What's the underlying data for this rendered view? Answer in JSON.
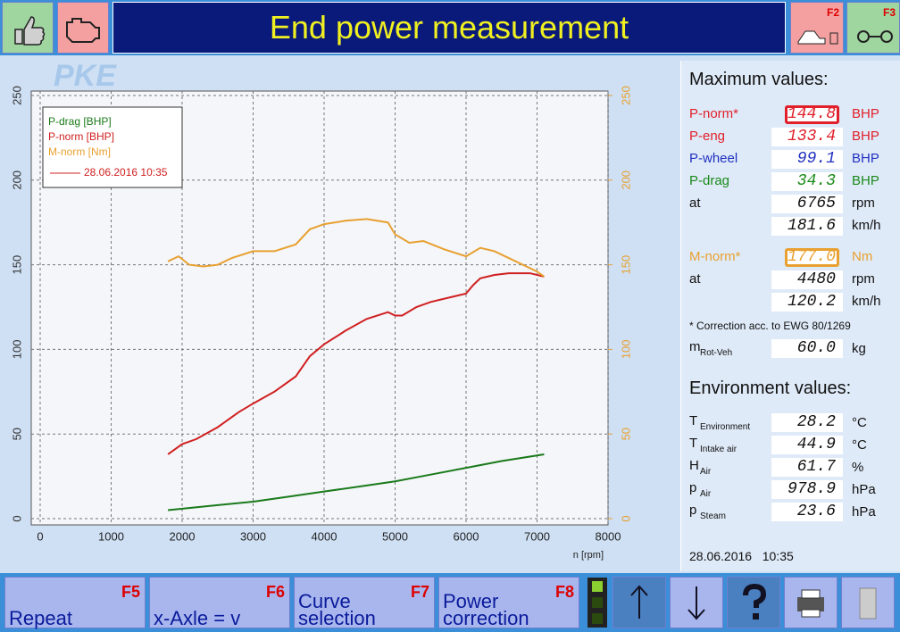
{
  "header": {
    "title": "End power measurement",
    "logo": "PKE",
    "keys": [
      "F2",
      "F3"
    ]
  },
  "chart_data": {
    "type": "line",
    "x_label": "n [rpm]",
    "xlim": [
      0,
      8000
    ],
    "xticks": [
      0,
      1000,
      2000,
      3000,
      4000,
      5000,
      6000,
      7000,
      8000
    ],
    "ylim": [
      0,
      250
    ],
    "yticks": [
      0,
      50,
      100,
      150,
      200,
      250
    ],
    "y2lim": [
      0,
      250
    ],
    "y2ticks": [
      0,
      50,
      100,
      150,
      200,
      250
    ],
    "y2color": "#e8a030",
    "grid": true,
    "legend": "top-left",
    "legend_date": "28.06.2016 10:35",
    "series": [
      {
        "name": "P-drag [BHP]",
        "color": "#1a7a1a",
        "x": [
          1800,
          2500,
          3000,
          3500,
          4000,
          4500,
          5000,
          5500,
          6000,
          6500,
          7100
        ],
        "values": [
          5,
          8,
          10,
          13,
          16,
          19,
          22,
          26,
          30,
          34,
          38
        ]
      },
      {
        "name": "P-norm [BHP]",
        "color": "#d02020",
        "x": [
          1800,
          2000,
          2200,
          2500,
          2800,
          3000,
          3300,
          3600,
          3800,
          4000,
          4300,
          4600,
          4900,
          5000,
          5100,
          5300,
          5500,
          5800,
          6000,
          6100,
          6200,
          6400,
          6600,
          6900,
          7100
        ],
        "values": [
          38,
          44,
          47,
          54,
          63,
          68,
          75,
          84,
          96,
          103,
          111,
          118,
          122,
          120,
          120,
          125,
          128,
          131,
          133,
          138,
          142,
          144,
          145,
          145,
          143
        ]
      },
      {
        "name": "M-norm [Nm]",
        "color": "#e8a030",
        "axis": "y2",
        "x": [
          1800,
          1950,
          2100,
          2300,
          2500,
          2700,
          3000,
          3300,
          3600,
          3800,
          4000,
          4300,
          4600,
          4900,
          5000,
          5200,
          5400,
          5700,
          6000,
          6200,
          6400,
          6700,
          7000,
          7100
        ],
        "values": [
          152,
          155,
          150,
          149,
          150,
          154,
          158,
          158,
          162,
          171,
          174,
          176,
          177,
          175,
          168,
          163,
          164,
          159,
          155,
          160,
          158,
          152,
          146,
          143
        ]
      }
    ]
  },
  "panel": {
    "max_title": "Maximum values:",
    "max_rows": [
      {
        "label": "P-norm*",
        "value": "144.8",
        "unit": "BHP",
        "color": "#e0202a",
        "boxed": true
      },
      {
        "label": "P-eng",
        "value": "133.4",
        "unit": "BHP",
        "color": "#e0202a"
      },
      {
        "label": "P-wheel",
        "value": "99.1",
        "unit": "BHP",
        "color": "#2030c0"
      },
      {
        "label": "P-drag",
        "value": "34.3",
        "unit": "BHP",
        "color": "#1a8a1a"
      },
      {
        "label": "at",
        "value": "6765",
        "unit": "rpm",
        "color": "#111111"
      },
      {
        "value": "181.6",
        "unit": "km/h",
        "color": "#111111"
      },
      {
        "label": "M-norm*",
        "value": "177.0",
        "unit": "Nm",
        "color": "#e8a030",
        "boxed": true
      },
      {
        "label": "at",
        "value": "4480",
        "unit": "rpm",
        "color": "#111111"
      },
      {
        "value": "120.2",
        "unit": "km/h",
        "color": "#111111"
      }
    ],
    "note": "* Correction acc. to EWG 80/1269",
    "mass": {
      "label": "m",
      "sub": "Rot-Veh",
      "value": "60.0",
      "unit": "kg"
    },
    "env_title": "Environment values:",
    "env_rows": [
      {
        "label": "T",
        "sub": "Environment",
        "value": "28.2",
        "unit": "°C"
      },
      {
        "label": "T",
        "sub": "Intake air",
        "value": "44.9",
        "unit": "°C"
      },
      {
        "label": "H",
        "sub": "Air",
        "value": "61.7",
        "unit": "%"
      },
      {
        "label": "p",
        "sub": "Air",
        "value": "978.9",
        "unit": "hPa"
      },
      {
        "label": "p",
        "sub": "Steam",
        "value": "23.6",
        "unit": "hPa"
      }
    ],
    "timestamp": "28.06.2016   10:35"
  },
  "buttons": [
    {
      "key": "F5",
      "lines": [
        "Repeat"
      ]
    },
    {
      "key": "F6",
      "lines": [
        "x-Axle = v"
      ]
    },
    {
      "key": "F7",
      "lines": [
        "Curve",
        "selection"
      ]
    },
    {
      "key": "F8",
      "lines": [
        "Power",
        "correction"
      ]
    }
  ]
}
